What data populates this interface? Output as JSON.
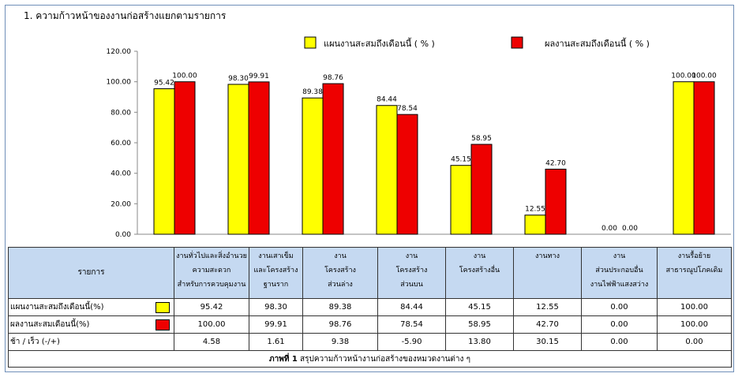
{
  "title": "1. ความก้าวหน้าของงานก่อสร้างแยกตามรายการ",
  "colors": {
    "plan": "#ffff00",
    "actual": "#ee0000",
    "border": "#000000",
    "header_bg": "#c5d9f1"
  },
  "chart_data": {
    "type": "bar",
    "series": [
      {
        "name": "แผนงานสะสมถึงเดือนนี้ ( % )",
        "values": [
          95.42,
          98.3,
          89.38,
          84.44,
          45.15,
          12.55,
          0.0,
          100.0
        ]
      },
      {
        "name": "ผลงานสะสมถึงเดือนนี้ ( % )",
        "values": [
          100.0,
          99.91,
          98.76,
          78.54,
          58.95,
          42.7,
          0.0,
          100.0
        ]
      }
    ],
    "ylim": [
      0,
      120
    ],
    "yticks": [
      "0.00",
      "20.00",
      "40.00",
      "60.00",
      "80.00",
      "100.00",
      "120.00"
    ],
    "legend_position": "top",
    "grid": false
  },
  "table": {
    "header_label": "รายการ",
    "columns": [
      [
        "งานทั่วไปและสิ่งอำนวย",
        "ความสะดวก",
        "สำหรับการควบคุมงาน"
      ],
      [
        "งานเสาเข็ม",
        "และโครงสร้าง",
        "ฐานราก"
      ],
      [
        "งาน",
        "โครงสร้าง",
        "ส่วนล่าง"
      ],
      [
        "งาน",
        "โครงสร้าง",
        "ส่วนบน"
      ],
      [
        "งาน",
        "โครงสร้างอื่น"
      ],
      [
        "งานทาง"
      ],
      [
        "งาน",
        "ส่วนประกอบอื่น",
        "งานไฟฟ้าแสงสว่าง"
      ],
      [
        "งานรื้อย้าย",
        "สาธารณูปโภคเดิม"
      ]
    ],
    "rows": [
      {
        "label": "แผนงานสะสมถึงเดือนนี้(%)",
        "swatch": "plan",
        "values": [
          "95.42",
          "98.30",
          "89.38",
          "84.44",
          "45.15",
          "12.55",
          "0.00",
          "100.00"
        ]
      },
      {
        "label": "ผลงานสะสมเดือนนี้(%)",
        "swatch": "actual",
        "values": [
          "100.00",
          "99.91",
          "98.76",
          "78.54",
          "58.95",
          "42.70",
          "0.00",
          "100.00"
        ]
      },
      {
        "label": "ช้า / เร็ว  (-/+)",
        "swatch": null,
        "values": [
          "4.58",
          "1.61",
          "9.38",
          "-5.90",
          "13.80",
          "30.15",
          "0.00",
          "0.00"
        ]
      }
    ],
    "caption_bold": "ภาพที่ 1",
    "caption_text": " สรุปความก้าวหน้างานก่อสร้างของหมวดงานต่าง ๆ"
  }
}
